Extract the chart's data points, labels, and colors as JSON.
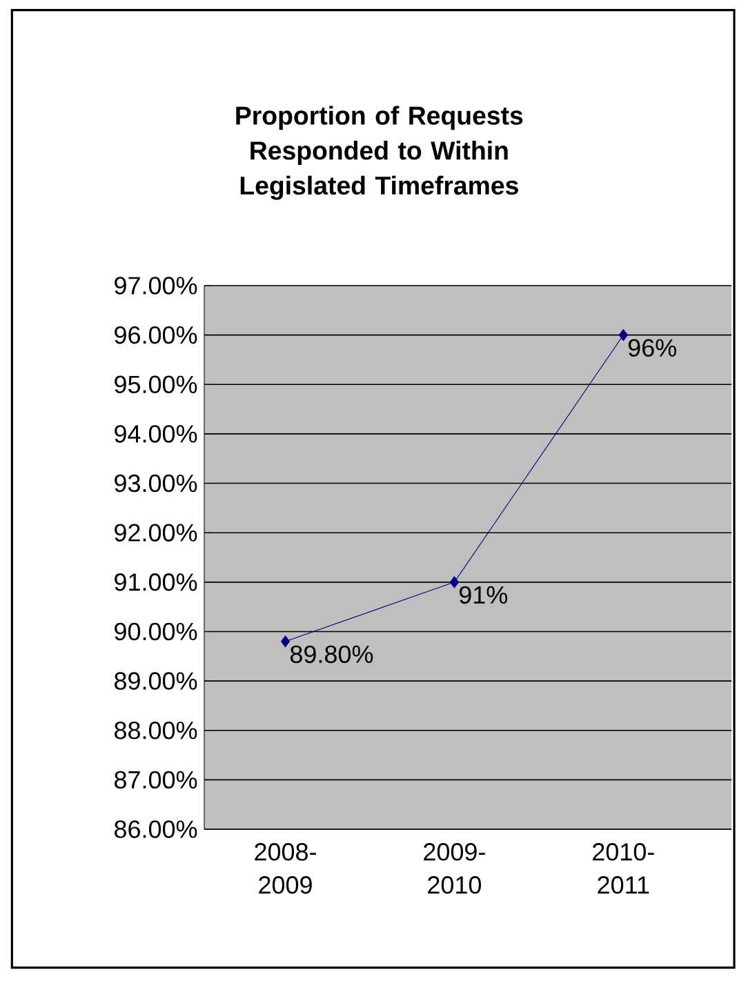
{
  "chart_data": {
    "type": "line",
    "title": "Proportion of Requests Responded to Within Legislated Timeframes",
    "categories": [
      "2008-2009",
      "2009-2010",
      "2010-2011"
    ],
    "values": [
      89.8,
      91,
      96
    ],
    "value_labels": [
      "89.80%",
      "91%",
      "96%"
    ],
    "color": "#000080",
    "marker": "diamond",
    "line_style": "solid",
    "ylim": [
      86,
      97
    ],
    "yticks": [
      {
        "value": 86,
        "label": "86.00%"
      },
      {
        "value": 87,
        "label": "87.00%"
      },
      {
        "value": 88,
        "label": "88.00%"
      },
      {
        "value": 89,
        "label": "89.00%"
      },
      {
        "value": 90,
        "label": "90.00%"
      },
      {
        "value": 91,
        "label": "91.00%"
      },
      {
        "value": 92,
        "label": "92.00%"
      },
      {
        "value": 93,
        "label": "93.00%"
      },
      {
        "value": 94,
        "label": "94.00%"
      },
      {
        "value": 95,
        "label": "95.00%"
      },
      {
        "value": 96,
        "label": "96.00%"
      },
      {
        "value": 97,
        "label": "97.00%"
      }
    ],
    "grid": "y"
  }
}
